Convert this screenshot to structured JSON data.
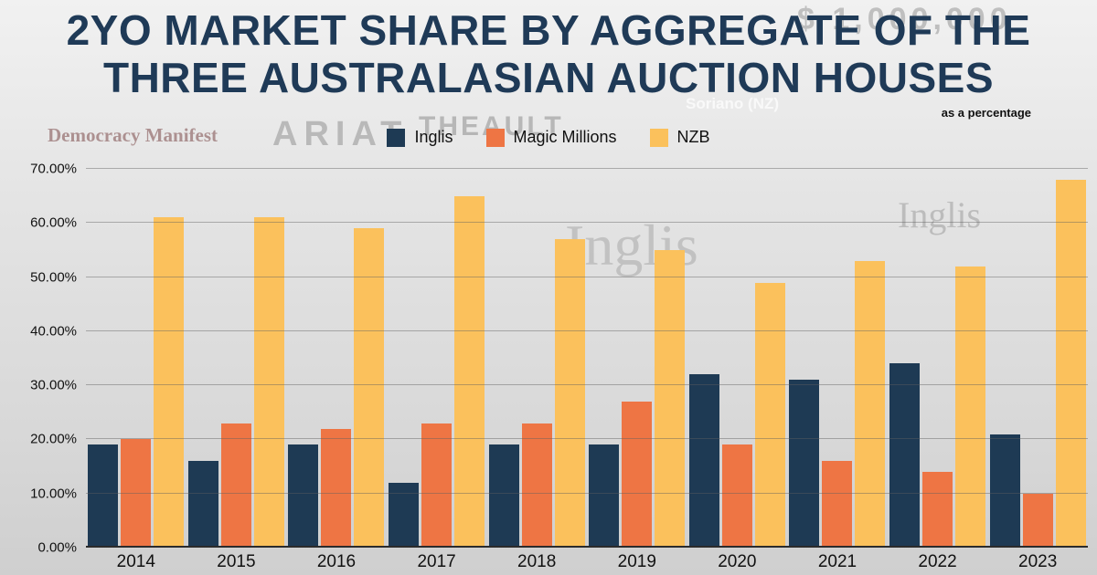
{
  "title": {
    "line1": "2YO MARKET SHARE BY AGGREGATE OF THE",
    "line2": "THREE AUSTRALASIAN AUCTION HOUSES"
  },
  "subtitle": "as a percentage",
  "watermarks": [
    "Democracy Manifest",
    "ARIAT",
    "THEAULT",
    "Soriano (NZ)",
    "$ 1,000,000",
    "Inglis",
    "Inglis"
  ],
  "chart_data": {
    "type": "bar",
    "title": "2YO Market Share by Aggregate of the Three Australasian Auction Houses",
    "subtitle": "as a percentage",
    "categories": [
      "2014",
      "2015",
      "2016",
      "2017",
      "2018",
      "2019",
      "2020",
      "2021",
      "2022",
      "2023"
    ],
    "series": [
      {
        "name": "Inglis",
        "color": "#1e3a54",
        "values": [
          19,
          16,
          19,
          12,
          19,
          19,
          32,
          31,
          34,
          21
        ]
      },
      {
        "name": "Magic Millions",
        "color": "#ee7544",
        "values": [
          20,
          23,
          22,
          23,
          23,
          27,
          19,
          16,
          14,
          10
        ]
      },
      {
        "name": "NZB",
        "color": "#fbc15c",
        "values": [
          61,
          61,
          59,
          65,
          57,
          55,
          49,
          53,
          52,
          68
        ]
      }
    ],
    "ylim": [
      0,
      70
    ],
    "y_ticks": [
      "0.00%",
      "10.00%",
      "20.00%",
      "30.00%",
      "40.00%",
      "50.00%",
      "60.00%",
      "70.00%"
    ],
    "grid": true,
    "legend_position": "top-center",
    "xlabel": "",
    "ylabel": ""
  }
}
